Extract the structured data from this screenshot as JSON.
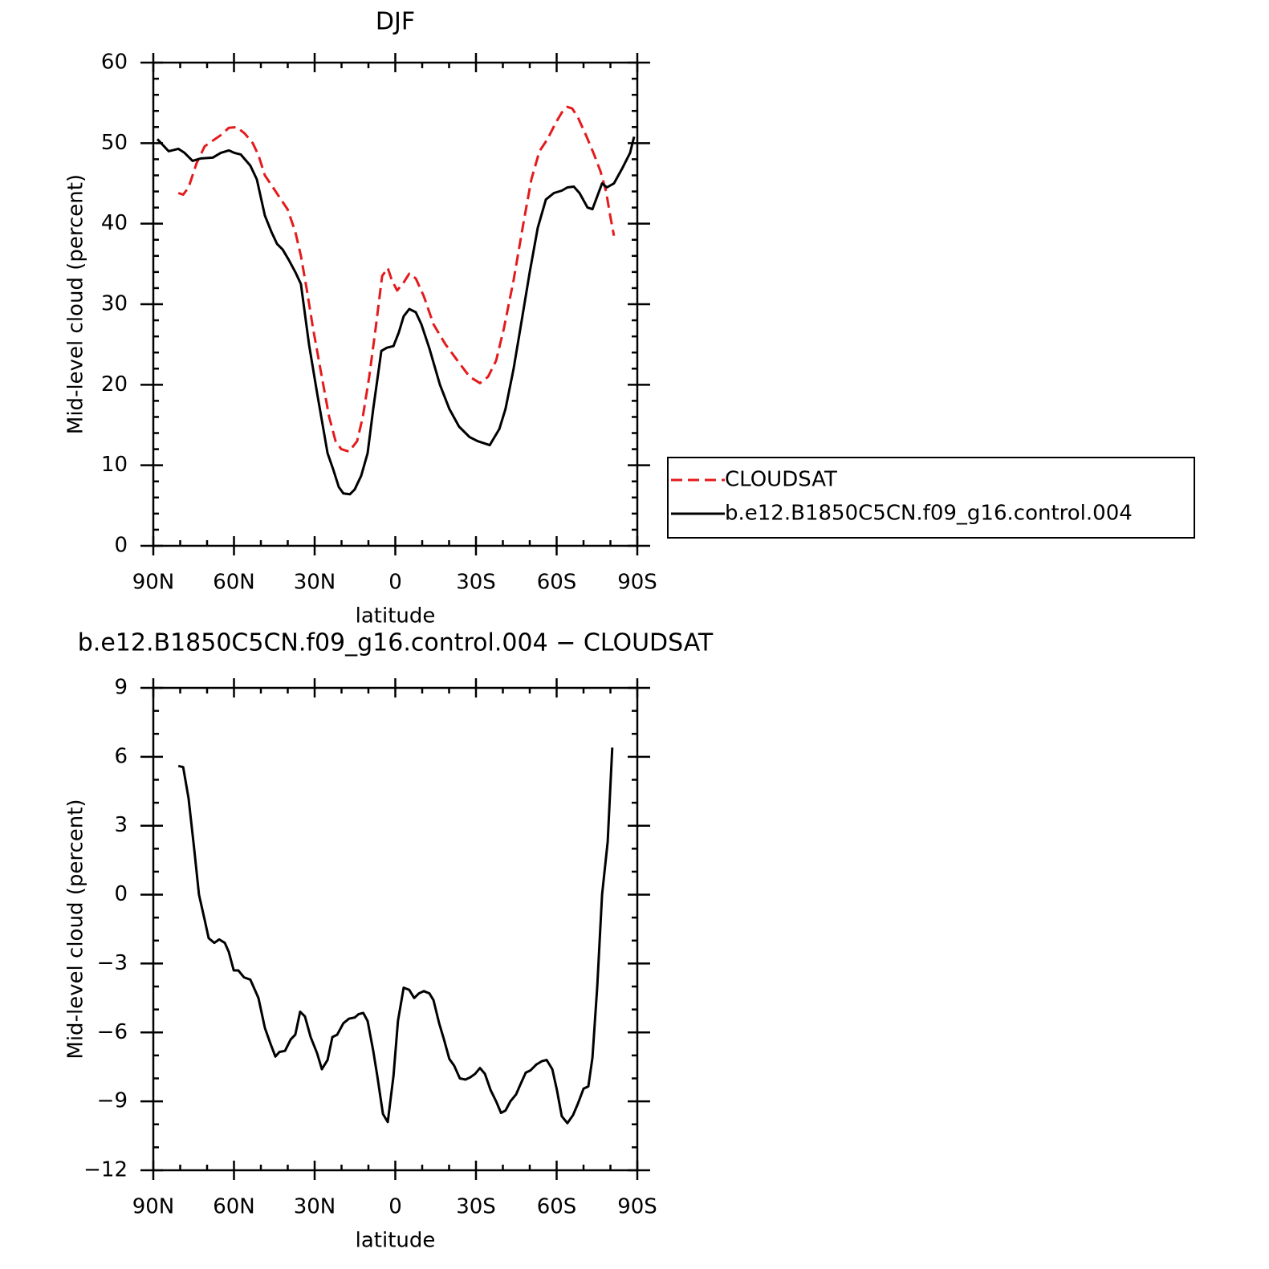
{
  "chart_data": [
    {
      "type": "line",
      "title": "DJF",
      "x_label": "latitude",
      "y_label": "Mid-level cloud (percent)",
      "xlim": [
        90,
        -90
      ],
      "ylim": [
        0,
        60
      ],
      "xticks": [
        {
          "value": 90,
          "label": "90N"
        },
        {
          "value": 60,
          "label": "60N"
        },
        {
          "value": 30,
          "label": "30N"
        },
        0,
        {
          "value": -30,
          "label": "30S"
        },
        {
          "value": -60,
          "label": "60S"
        },
        {
          "value": -90,
          "label": "90S"
        }
      ],
      "yticks": [
        0,
        10,
        20,
        30,
        40,
        50,
        60
      ],
      "minor_xticks": [
        80,
        70,
        50,
        40,
        20,
        10,
        -10,
        -20,
        -40,
        -50,
        -70,
        -80
      ],
      "minor_yticks": [
        2,
        4,
        6,
        8,
        12,
        14,
        16,
        18,
        22,
        24,
        26,
        28,
        32,
        34,
        36,
        38,
        42,
        44,
        46,
        48,
        52,
        54,
        56,
        58
      ],
      "legend": "right",
      "series": [
        {
          "name": "CLOUDSAT",
          "color": "#e41a1c",
          "dash": true,
          "x": [
            80.7,
            78.9,
            76.9,
            73.9,
            70.9,
            67.9,
            64.9,
            61.9,
            59.0,
            56.0,
            53.0,
            50.9,
            48.5,
            45.5,
            42.5,
            40.1,
            37.2,
            35.1,
            33.0,
            30.6,
            27.6,
            24.6,
            22.2,
            20.1,
            17.2,
            14.2,
            12.1,
            9.7,
            7.3,
            4.9,
            2.8,
            1.3,
            -0.7,
            -3.1,
            -5.2,
            -7.6,
            -10.6,
            -14.2,
            -18.7,
            -23.1,
            -27.6,
            -31.5,
            -34.5,
            -37.5,
            -40.4,
            -44.0,
            -47.6,
            -50.6,
            -53.6,
            -56.6,
            -59.6,
            -61.9,
            -64.0,
            -65.8,
            -67.9,
            -70.9,
            -73.9,
            -76.3,
            -78.4,
            -79.9,
            -81.3
          ],
          "values": [
            43.8,
            43.6,
            44.5,
            47.5,
            49.6,
            50.3,
            51,
            51.9,
            52,
            51.2,
            50,
            48.5,
            46,
            44.5,
            43,
            41.8,
            39,
            36,
            32,
            27,
            21.5,
            16,
            13,
            12,
            11.7,
            13,
            16,
            21,
            27,
            33.5,
            34.5,
            33,
            31.7,
            32.7,
            33.8,
            33.2,
            31,
            27.5,
            25,
            23,
            21,
            20.2,
            21,
            23,
            27,
            33,
            40,
            45.5,
            49,
            50.5,
            52.5,
            53.8,
            54.5,
            54.3,
            53.2,
            51,
            48.6,
            46.5,
            44,
            41,
            38.5
          ]
        },
        {
          "name": "b.e12.B1850C5CN.f09_g16.control.004",
          "color": "#000000",
          "dash": false,
          "x": [
            88.5,
            84.3,
            80.7,
            78.4,
            75.4,
            72.4,
            67.9,
            64.9,
            61.9,
            59.9,
            57.5,
            53.9,
            51.5,
            48.5,
            46.1,
            44.0,
            41.9,
            39.6,
            37.2,
            35.1,
            32.1,
            29.1,
            27.0,
            25.2,
            23.1,
            21.0,
            19.3,
            16.9,
            15.1,
            12.7,
            10.3,
            8.2,
            5.2,
            3.1,
            0.7,
            -1.3,
            -3.1,
            -5.2,
            -7.6,
            -9.7,
            -12.7,
            -16.6,
            -20.1,
            -23.7,
            -27.6,
            -30.6,
            -35.1,
            -38.7,
            -41.0,
            -44.0,
            -47.0,
            -50.0,
            -53.0,
            -56.0,
            -59.0,
            -61.9,
            -64.0,
            -66.4,
            -68.5,
            -71.5,
            -73.3,
            -76.9,
            -78.7,
            -81.3,
            -84.3,
            -87.3,
            -88.8
          ],
          "values": [
            50.5,
            49,
            49.3,
            48.8,
            47.8,
            48.1,
            48.2,
            48.8,
            49.1,
            48.8,
            48.6,
            47.2,
            45.5,
            41,
            39,
            37.5,
            36.8,
            35.5,
            34,
            32.5,
            25,
            19,
            15,
            11.5,
            9.5,
            7.3,
            6.5,
            6.4,
            7,
            8.7,
            11.5,
            17,
            24.2,
            24.6,
            24.8,
            26.5,
            28.5,
            29.4,
            29.0,
            27.5,
            24.5,
            20,
            17,
            14.8,
            13.5,
            13,
            12.5,
            14.5,
            17,
            22,
            28,
            34,
            39.5,
            43,
            43.8,
            44.1,
            44.5,
            44.6,
            43.8,
            42,
            41.8,
            45,
            44.5,
            45,
            46.8,
            48.8,
            50.8
          ]
        }
      ]
    },
    {
      "type": "line",
      "title": "b.e12.B1850C5CN.f09_g16.control.004 − CLOUDSAT",
      "x_label": "latitude",
      "y_label": "Mid-level cloud (percent)",
      "xlim": [
        90,
        -90
      ],
      "ylim": [
        -12,
        9
      ],
      "xticks": [
        {
          "value": 90,
          "label": "90N"
        },
        {
          "value": 60,
          "label": "60N"
        },
        {
          "value": 30,
          "label": "30N"
        },
        0,
        {
          "value": -30,
          "label": "30S"
        },
        {
          "value": -60,
          "label": "60S"
        },
        {
          "value": -90,
          "label": "90S"
        }
      ],
      "yticks": [
        {
          "value": -12,
          "label": "−12"
        },
        {
          "value": -9,
          "label": "−9"
        },
        {
          "value": -6,
          "label": "−6"
        },
        {
          "value": -3,
          "label": "−3"
        },
        0,
        3,
        6,
        9
      ],
      "minor_xticks": [
        80,
        70,
        50,
        40,
        20,
        10,
        -10,
        -20,
        -40,
        -50,
        -70,
        -80
      ],
      "minor_yticks": [
        -11,
        -10,
        -8,
        -7,
        -5,
        -4,
        -2,
        -1,
        1,
        2,
        4,
        5,
        7,
        8
      ],
      "series": [
        {
          "color": "#000000",
          "dash": false,
          "x": [
            80.7,
            78.9,
            76.9,
            74.8,
            73.0,
            70.9,
            69.4,
            67.3,
            65.5,
            63.4,
            61.9,
            60.1,
            58.4,
            56.3,
            53.9,
            50.9,
            48.5,
            46.4,
            44.6,
            43.1,
            41.0,
            38.9,
            37.2,
            35.4,
            33.6,
            31.5,
            29.1,
            27.3,
            25.2,
            23.4,
            21.6,
            19.3,
            17.2,
            15.1,
            13.6,
            11.9,
            10.3,
            8.2,
            6.7,
            4.6,
            2.8,
            0.7,
            -1.0,
            -3.1,
            -5.2,
            -7.0,
            -8.8,
            -10.6,
            -12.7,
            -14.2,
            -16.3,
            -18.1,
            -20.1,
            -21.9,
            -24.0,
            -26.1,
            -27.9,
            -29.7,
            -31.5,
            -33.3,
            -35.4,
            -37.5,
            -39.3,
            -41.0,
            -42.8,
            -44.9,
            -46.4,
            -48.5,
            -50.3,
            -52.4,
            -54.5,
            -56.3,
            -58.4,
            -60.1,
            -61.9,
            -64.0,
            -66.1,
            -67.9,
            -70.0,
            -71.8,
            -73.3,
            -75.1,
            -76.9,
            -79.0,
            -80.7
          ],
          "values": [
            5.6,
            5.55,
            4.2,
            2,
            0,
            -1.1,
            -1.9,
            -2.1,
            -1.95,
            -2.1,
            -2.5,
            -3.3,
            -3.3,
            -3.6,
            -3.7,
            -4.5,
            -5.8,
            -6.5,
            -7.05,
            -6.85,
            -6.8,
            -6.3,
            -6.1,
            -5.1,
            -5.3,
            -6.2,
            -6.9,
            -7.6,
            -7.2,
            -6.2,
            -6.1,
            -5.6,
            -5.4,
            -5.35,
            -5.2,
            -5.15,
            -5.5,
            -6.8,
            -7.9,
            -9.55,
            -9.9,
            -7.9,
            -5.5,
            -4.05,
            -4.15,
            -4.5,
            -4.3,
            -4.2,
            -4.3,
            -4.6,
            -5.6,
            -6.3,
            -7.15,
            -7.45,
            -8.0,
            -8.05,
            -7.95,
            -7.8,
            -7.55,
            -7.8,
            -8.5,
            -9.0,
            -9.5,
            -9.4,
            -9.0,
            -8.7,
            -8.3,
            -7.75,
            -7.65,
            -7.4,
            -7.25,
            -7.2,
            -7.6,
            -8.5,
            -9.65,
            -9.95,
            -9.6,
            -9.1,
            -8.45,
            -8.35,
            -7.1,
            -4,
            0,
            2.3,
            6.4
          ]
        }
      ]
    }
  ]
}
